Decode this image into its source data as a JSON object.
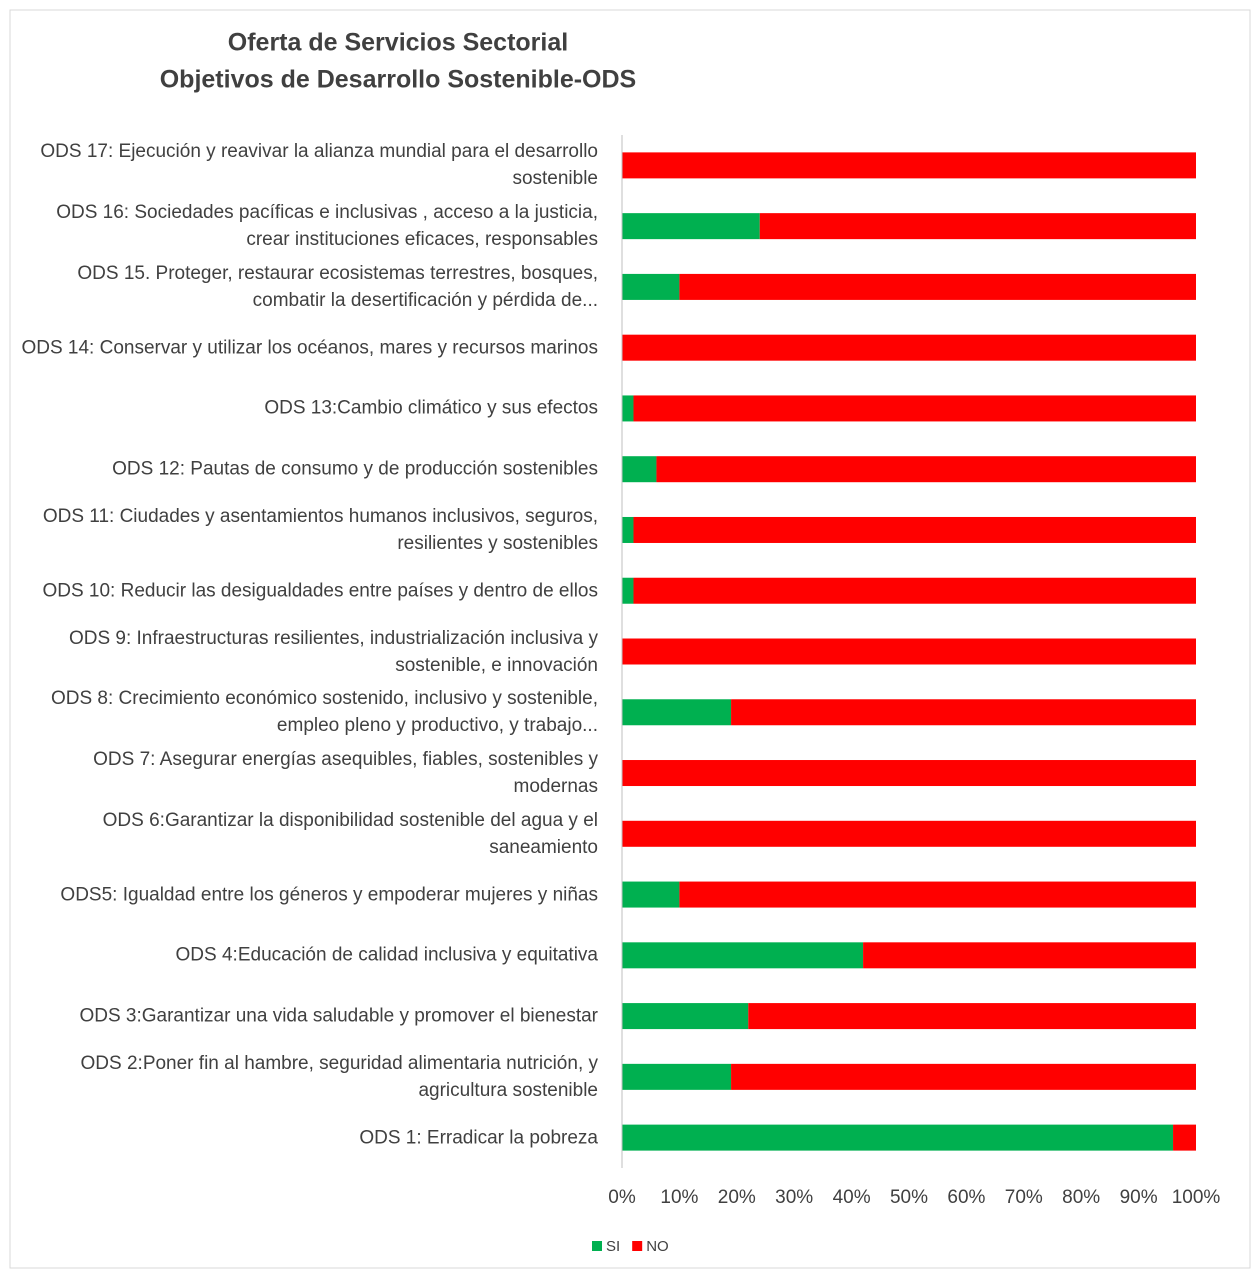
{
  "chart_data": {
    "type": "stacked_barh",
    "title": "Oferta de Servicios Sectorial",
    "subtitle": "Objetivos de Desarrollo Sostenible-ODS",
    "categories": [
      "ODS 17: Ejecución y reavivar la alianza mundial para el desarrollo sostenible",
      "ODS 16:  Sociedades pacíficas e inclusivas , acceso a la justicia, crear instituciones eficaces, responsables",
      "ODS 15. Proteger, restaurar ecosistemas terrestres, bosques, combatir la desertificación  y pérdida de...",
      "ODS 14: Conservar y utilizar los océanos, mares y recursos marinos",
      "ODS 13:Cambio climático y sus efectos",
      "ODS 12: Pautas de consumo y de producción sostenibles",
      "ODS 11: Ciudades y asentamientos humanos inclusivos, seguros, resilientes y sostenibles",
      "ODS 10: Reducir las desigualdades entre países y dentro de ellos",
      "ODS 9:  Infraestructuras resilientes, industrialización inclusiva y sostenible,  e innovación",
      "ODS 8: Crecimiento económico sostenido, inclusivo y sostenible, empleo pleno y productivo, y trabajo...",
      "ODS 7: Asegurar energías asequibles, fiables, sostenibles y modernas",
      "ODS 6:Garantizar la disponibilidad sostenible del agua y el saneamiento",
      "ODS5: Igualdad entre los géneros y empoderar mujeres y niñas",
      "ODS 4:Educación de calidad inclusiva y equitativa",
      "ODS 3:Garantizar una vida saludable y promover el bienestar",
      "ODS 2:Poner fin al hambre, seguridad alimentaria nutrición, y agricultura sostenible",
      "ODS 1: Erradicar la pobreza"
    ],
    "series": [
      {
        "name": "SI",
        "color": "#00b050",
        "values": [
          0,
          24,
          10,
          0,
          2,
          6,
          2,
          2,
          0,
          19,
          0,
          0,
          10,
          42,
          22,
          19,
          96
        ]
      },
      {
        "name": "NO",
        "color": "#ff0000",
        "values": [
          100,
          76,
          90,
          100,
          98,
          94,
          98,
          98,
          100,
          81,
          100,
          100,
          90,
          58,
          78,
          81,
          4
        ]
      }
    ],
    "xlim": [
      0,
      100
    ],
    "xticks": [
      {
        "value": 0,
        "label": "0%"
      },
      {
        "value": 10,
        "label": "10%"
      },
      {
        "value": 20,
        "label": "20%"
      },
      {
        "value": 30,
        "label": "30%"
      },
      {
        "value": 40,
        "label": "40%"
      },
      {
        "value": 50,
        "label": "50%"
      },
      {
        "value": 60,
        "label": "60%"
      },
      {
        "value": 70,
        "label": "70%"
      },
      {
        "value": 80,
        "label": "80%"
      },
      {
        "value": 90,
        "label": "90%"
      },
      {
        "value": 100,
        "label": "100%"
      }
    ],
    "legend": "bottom"
  }
}
